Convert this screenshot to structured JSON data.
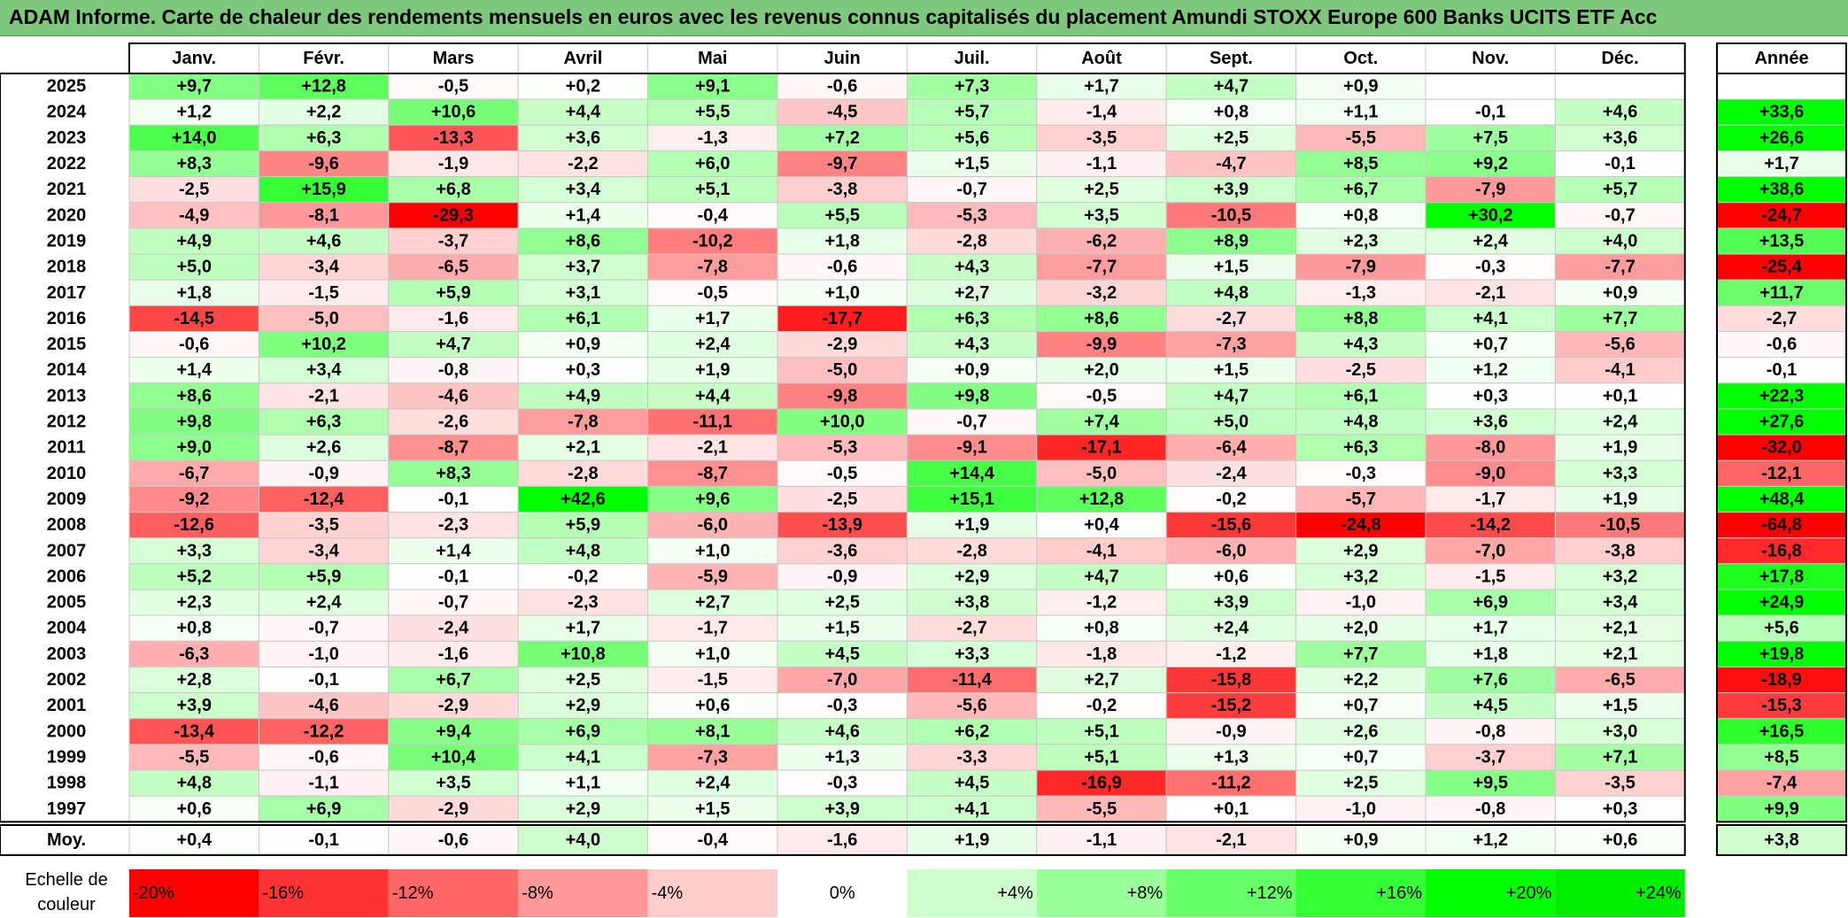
{
  "title": "ADAM Informe. Carte de chaleur des rendements mensuels en euros avec les revenus connus capitalisés du placement Amundi STOXX Europe 600 Banks UCITS ETF Acc",
  "chart_data": {
    "type": "heatmap",
    "columns": [
      "Janv.",
      "Févr.",
      "Mars",
      "Avril",
      "Mai",
      "Juin",
      "Juil.",
      "Août",
      "Sept.",
      "Oct.",
      "Nov.",
      "Déc."
    ],
    "year_header": "Année",
    "rows": [
      {
        "year": "2025",
        "values": [
          "+9,7",
          "+12,8",
          "-0,5",
          "+0,2",
          "+9,1",
          "-0,6",
          "+7,3",
          "+1,7",
          "+4,7",
          "+0,9",
          "",
          ""
        ],
        "annual": ""
      },
      {
        "year": "2024",
        "values": [
          "+1,2",
          "+2,2",
          "+10,6",
          "+4,4",
          "+5,5",
          "-4,5",
          "+5,7",
          "-1,4",
          "+0,8",
          "+1,1",
          "-0,1",
          "+4,6"
        ],
        "annual": "+33,6"
      },
      {
        "year": "2023",
        "values": [
          "+14,0",
          "+6,3",
          "-13,3",
          "+3,6",
          "-1,3",
          "+7,2",
          "+5,6",
          "-3,5",
          "+2,5",
          "-5,5",
          "+7,5",
          "+3,6"
        ],
        "annual": "+26,6"
      },
      {
        "year": "2022",
        "values": [
          "+8,3",
          "-9,6",
          "-1,9",
          "-2,2",
          "+6,0",
          "-9,7",
          "+1,5",
          "-1,1",
          "-4,7",
          "+8,5",
          "+9,2",
          "-0,1"
        ],
        "annual": "+1,7"
      },
      {
        "year": "2021",
        "values": [
          "-2,5",
          "+15,9",
          "+6,8",
          "+3,4",
          "+5,1",
          "-3,8",
          "-0,7",
          "+2,5",
          "+3,9",
          "+6,7",
          "-7,9",
          "+5,7"
        ],
        "annual": "+38,6"
      },
      {
        "year": "2020",
        "values": [
          "-4,9",
          "-8,1",
          "-29,3",
          "+1,4",
          "-0,4",
          "+5,5",
          "-5,3",
          "+3,5",
          "-10,5",
          "+0,8",
          "+30,2",
          "-0,7"
        ],
        "annual": "-24,7"
      },
      {
        "year": "2019",
        "values": [
          "+4,9",
          "+4,6",
          "-3,7",
          "+8,6",
          "-10,2",
          "+1,8",
          "-2,8",
          "-6,2",
          "+8,9",
          "+2,3",
          "+2,4",
          "+4,0"
        ],
        "annual": "+13,5"
      },
      {
        "year": "2018",
        "values": [
          "+5,0",
          "-3,4",
          "-6,5",
          "+3,7",
          "-7,8",
          "-0,6",
          "+4,3",
          "-7,7",
          "+1,5",
          "-7,9",
          "-0,3",
          "-7,7"
        ],
        "annual": "-25,4"
      },
      {
        "year": "2017",
        "values": [
          "+1,8",
          "-1,5",
          "+5,9",
          "+3,1",
          "-0,5",
          "+1,0",
          "+2,7",
          "-3,2",
          "+4,8",
          "-1,3",
          "-2,1",
          "+0,9"
        ],
        "annual": "+11,7"
      },
      {
        "year": "2016",
        "values": [
          "-14,5",
          "-5,0",
          "-1,6",
          "+6,1",
          "+1,7",
          "-17,7",
          "+6,3",
          "+8,6",
          "-2,7",
          "+8,8",
          "+4,1",
          "+7,7"
        ],
        "annual": "-2,7"
      },
      {
        "year": "2015",
        "values": [
          "-0,6",
          "+10,2",
          "+4,7",
          "+0,9",
          "+2,4",
          "-2,9",
          "+4,3",
          "-9,9",
          "-7,3",
          "+4,3",
          "+0,7",
          "-5,6"
        ],
        "annual": "-0,6"
      },
      {
        "year": "2014",
        "values": [
          "+1,4",
          "+3,4",
          "-0,8",
          "+0,3",
          "+1,9",
          "-5,0",
          "+0,9",
          "+2,0",
          "+1,5",
          "-2,5",
          "+1,2",
          "-4,1"
        ],
        "annual": "-0,1"
      },
      {
        "year": "2013",
        "values": [
          "+8,6",
          "-2,1",
          "-4,6",
          "+4,9",
          "+4,4",
          "-9,8",
          "+9,8",
          "-0,5",
          "+4,7",
          "+6,1",
          "+0,3",
          "+0,1"
        ],
        "annual": "+22,3"
      },
      {
        "year": "2012",
        "values": [
          "+9,8",
          "+6,3",
          "-2,6",
          "-7,8",
          "-11,1",
          "+10,0",
          "-0,7",
          "+7,4",
          "+5,0",
          "+4,8",
          "+3,6",
          "+2,4"
        ],
        "annual": "+27,6"
      },
      {
        "year": "2011",
        "values": [
          "+9,0",
          "+2,6",
          "-8,7",
          "+2,1",
          "-2,1",
          "-5,3",
          "-9,1",
          "-17,1",
          "-6,4",
          "+6,3",
          "-8,0",
          "+1,9"
        ],
        "annual": "-32,0"
      },
      {
        "year": "2010",
        "values": [
          "-6,7",
          "-0,9",
          "+8,3",
          "-2,8",
          "-8,7",
          "-0,5",
          "+14,4",
          "-5,0",
          "-2,4",
          "-0,3",
          "-9,0",
          "+3,3"
        ],
        "annual": "-12,1"
      },
      {
        "year": "2009",
        "values": [
          "-9,2",
          "-12,4",
          "-0,1",
          "+42,6",
          "+9,6",
          "-2,5",
          "+15,1",
          "+12,8",
          "-0,2",
          "-5,7",
          "-1,7",
          "+1,9"
        ],
        "annual": "+48,4"
      },
      {
        "year": "2008",
        "values": [
          "-12,6",
          "-3,5",
          "-2,3",
          "+5,9",
          "-6,0",
          "-13,9",
          "+1,9",
          "+0,4",
          "-15,6",
          "-24,8",
          "-14,2",
          "-10,5"
        ],
        "annual": "-64,8"
      },
      {
        "year": "2007",
        "values": [
          "+3,3",
          "-3,4",
          "+1,4",
          "+4,8",
          "+1,0",
          "-3,6",
          "-2,8",
          "-4,1",
          "-6,0",
          "+2,9",
          "-7,0",
          "-3,8"
        ],
        "annual": "-16,8"
      },
      {
        "year": "2006",
        "values": [
          "+5,2",
          "+5,9",
          "-0,1",
          "-0,2",
          "-5,9",
          "-0,9",
          "+2,9",
          "+4,7",
          "+0,6",
          "+3,2",
          "-1,5",
          "+3,2"
        ],
        "annual": "+17,8"
      },
      {
        "year": "2005",
        "values": [
          "+2,3",
          "+2,4",
          "-0,7",
          "-2,3",
          "+2,7",
          "+2,5",
          "+3,8",
          "-1,2",
          "+3,9",
          "-1,0",
          "+6,9",
          "+3,4"
        ],
        "annual": "+24,9"
      },
      {
        "year": "2004",
        "values": [
          "+0,8",
          "-0,7",
          "-2,4",
          "+1,7",
          "-1,7",
          "+1,5",
          "-2,7",
          "+0,8",
          "+2,4",
          "+2,0",
          "+1,7",
          "+2,1"
        ],
        "annual": "+5,6"
      },
      {
        "year": "2003",
        "values": [
          "-6,3",
          "-1,0",
          "-1,6",
          "+10,8",
          "+1,0",
          "+4,5",
          "+3,3",
          "-1,8",
          "-1,2",
          "+7,7",
          "+1,8",
          "+2,1"
        ],
        "annual": "+19,8"
      },
      {
        "year": "2002",
        "values": [
          "+2,8",
          "-0,1",
          "+6,7",
          "+2,5",
          "-1,5",
          "-7,0",
          "-11,4",
          "+2,7",
          "-15,8",
          "+2,2",
          "+7,6",
          "-6,5"
        ],
        "annual": "-18,9"
      },
      {
        "year": "2001",
        "values": [
          "+3,9",
          "-4,6",
          "-2,9",
          "+2,9",
          "+0,6",
          "-0,3",
          "-5,6",
          "-0,2",
          "-15,2",
          "+0,7",
          "+4,5",
          "+1,5"
        ],
        "annual": "-15,3"
      },
      {
        "year": "2000",
        "values": [
          "-13,4",
          "-12,2",
          "+9,4",
          "+6,9",
          "+8,1",
          "+4,6",
          "+6,2",
          "+5,1",
          "-0,9",
          "+2,6",
          "-0,8",
          "+3,0"
        ],
        "annual": "+16,5"
      },
      {
        "year": "1999",
        "values": [
          "-5,5",
          "-0,6",
          "+10,4",
          "+4,1",
          "-7,3",
          "+1,3",
          "-3,3",
          "+5,1",
          "+1,3",
          "+0,7",
          "-3,7",
          "+7,1"
        ],
        "annual": "+8,5"
      },
      {
        "year": "1998",
        "values": [
          "+4,8",
          "-1,1",
          "+3,5",
          "+1,1",
          "+2,4",
          "-0,3",
          "+4,5",
          "-16,9",
          "-11,2",
          "+2,5",
          "+9,5",
          "-3,5"
        ],
        "annual": "-7,4"
      },
      {
        "year": "1997",
        "values": [
          "+0,6",
          "+6,9",
          "-2,9",
          "+2,9",
          "+1,5",
          "+3,9",
          "+4,1",
          "-5,5",
          "+0,1",
          "-1,0",
          "-0,8",
          "+0,3"
        ],
        "annual": "+9,9"
      }
    ],
    "average": {
      "label": "Moy.",
      "values": [
        "+0,4",
        "-0,1",
        "-0,6",
        "+4,0",
        "-0,4",
        "-1,6",
        "+1,9",
        "-1,1",
        "-2,1",
        "+0,9",
        "+1,2",
        "+0,6"
      ],
      "annual": "+3,8"
    },
    "scale": {
      "label_line1": "Echelle de",
      "label_line2": "couleur",
      "steps": [
        {
          "label": "-20%",
          "value": -20,
          "color": "#ff0000"
        },
        {
          "label": "-16%",
          "value": -16,
          "color": "#ff3333"
        },
        {
          "label": "-12%",
          "value": -12,
          "color": "#ff6666"
        },
        {
          "label": "-8%",
          "value": -8,
          "color": "#ff9999"
        },
        {
          "label": "-4%",
          "value": -4,
          "color": "#ffcccc"
        },
        {
          "label": "0%",
          "value": 0,
          "color": "#ffffff"
        },
        {
          "label": "+4%",
          "value": 4,
          "color": "#ccffcc"
        },
        {
          "label": "+8%",
          "value": 8,
          "color": "#99ff99"
        },
        {
          "label": "+12%",
          "value": 12,
          "color": "#66ff66"
        },
        {
          "label": "+16%",
          "value": 16,
          "color": "#33ff33"
        },
        {
          "label": "+20%",
          "value": 20,
          "color": "#00ff00"
        },
        {
          "label": "+24%",
          "value": 24,
          "color": "#00ee00"
        }
      ]
    },
    "colors": {
      "negative_max": "#ff0000",
      "neutral": "#ffffff",
      "positive_max": "#00ff00",
      "title_bar": "#7ec87e"
    }
  }
}
